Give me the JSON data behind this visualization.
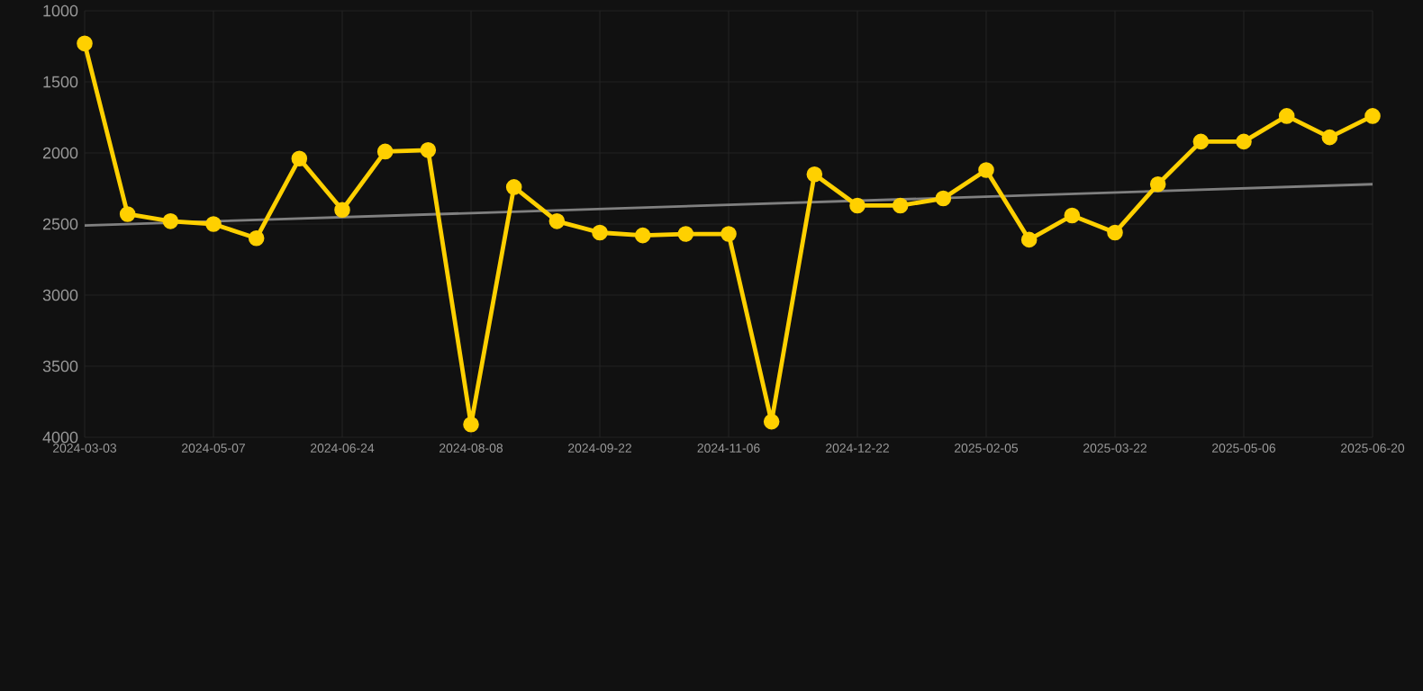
{
  "chart_data": {
    "type": "line",
    "categories": [
      "2024-03-03",
      null,
      null,
      "2024-05-07",
      null,
      null,
      "2024-06-24",
      null,
      null,
      "2024-08-08",
      null,
      null,
      "2024-09-22",
      null,
      null,
      "2024-11-06",
      null,
      null,
      "2024-12-22",
      null,
      null,
      "2025-02-05",
      null,
      null,
      "2025-03-22",
      null,
      null,
      "2025-05-06",
      null,
      null,
      "2025-06-20"
    ],
    "series": [
      {
        "color": "#ffd000",
        "marker": "circle",
        "values": [
          1230,
          2430,
          2480,
          2500,
          2600,
          2040,
          2400,
          1990,
          1980,
          3910,
          2240,
          2480,
          2560,
          2580,
          2570,
          2570,
          3890,
          2150,
          2370,
          2370,
          2320,
          2120,
          2610,
          2440,
          2560,
          2220,
          1920,
          1920,
          1740,
          1890,
          1740
        ]
      },
      {
        "color": "#808080",
        "marker": "none",
        "values": [
          2510,
          null,
          null,
          null,
          null,
          null,
          null,
          null,
          null,
          null,
          null,
          null,
          null,
          null,
          null,
          null,
          null,
          null,
          null,
          null,
          null,
          null,
          null,
          null,
          null,
          null,
          null,
          null,
          null,
          null,
          2220
        ]
      }
    ],
    "ylim": [
      4000,
      1000
    ],
    "yticks": [
      1000,
      1500,
      2000,
      2500,
      3000,
      3500,
      4000
    ],
    "grid": true
  }
}
